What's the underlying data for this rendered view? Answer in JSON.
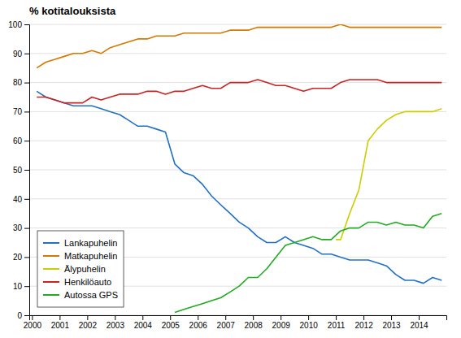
{
  "chart_data": {
    "type": "line",
    "title": "% kotitalouksista",
    "xlim": [
      1999.9,
      2015.0
    ],
    "xticks": [
      2000,
      2001,
      2002,
      2003,
      2004,
      2005,
      2006,
      2007,
      2008,
      2009,
      2010,
      2011,
      2012,
      2013,
      2014
    ],
    "ylim": [
      0,
      100
    ],
    "yticks": [
      0,
      10,
      20,
      30,
      40,
      50,
      60,
      70,
      80,
      90,
      100
    ],
    "grid": true,
    "legend": "lower left",
    "series": [
      {
        "name": "Lankapuhelin",
        "color": "#2070c8",
        "x": [
          2000.17,
          2000.5,
          2000.83,
          2001.17,
          2001.5,
          2001.83,
          2002.17,
          2002.5,
          2002.83,
          2003.17,
          2003.5,
          2003.83,
          2004.17,
          2004.5,
          2004.83,
          2005.17,
          2005.5,
          2005.83,
          2006.17,
          2006.5,
          2006.83,
          2007.17,
          2007.5,
          2007.83,
          2008.17,
          2008.5,
          2008.83,
          2009.17,
          2009.5,
          2009.83,
          2010.17,
          2010.5,
          2010.83,
          2011.17,
          2011.5,
          2011.83,
          2012.17,
          2012.5,
          2012.83,
          2013.17,
          2013.5,
          2013.83,
          2014.17,
          2014.5,
          2014.83
        ],
        "values": [
          77,
          75,
          74,
          73,
          72,
          72,
          72,
          71,
          70,
          69,
          67,
          65,
          65,
          64,
          63,
          52,
          49,
          48,
          45,
          41,
          38,
          35,
          32,
          30,
          27,
          25,
          25,
          27,
          25,
          24,
          23,
          21,
          21,
          20,
          19,
          19,
          19,
          18,
          17,
          14,
          12,
          12,
          11,
          13,
          12
        ]
      },
      {
        "name": "Matkapuhelin",
        "color": "#d47800",
        "x": [
          2000.17,
          2000.5,
          2000.83,
          2001.17,
          2001.5,
          2001.83,
          2002.17,
          2002.5,
          2002.83,
          2003.17,
          2003.5,
          2003.83,
          2004.17,
          2004.5,
          2004.83,
          2005.17,
          2005.5,
          2005.83,
          2006.17,
          2006.5,
          2006.83,
          2007.17,
          2007.5,
          2007.83,
          2008.17,
          2008.5,
          2008.83,
          2009.17,
          2009.5,
          2009.83,
          2010.17,
          2010.5,
          2010.83,
          2011.17,
          2011.5,
          2011.83,
          2012.17,
          2012.5,
          2012.83,
          2013.17,
          2013.5,
          2013.83,
          2014.17,
          2014.5,
          2014.83
        ],
        "values": [
          85,
          87,
          88,
          89,
          90,
          90,
          91,
          90,
          92,
          93,
          94,
          95,
          95,
          96,
          96,
          96,
          97,
          97,
          97,
          97,
          97,
          98,
          98,
          98,
          99,
          99,
          99,
          99,
          99,
          99,
          99,
          99,
          99,
          100,
          99,
          99,
          99,
          99,
          99,
          99,
          99,
          99,
          99,
          99,
          99
        ]
      },
      {
        "name": "Älypuhelin",
        "color": "#cccc00",
        "x": [
          2011.0,
          2011.17,
          2011.5,
          2011.83,
          2012.17,
          2012.5,
          2012.83,
          2013.17,
          2013.5,
          2013.83,
          2014.17,
          2014.5,
          2014.83
        ],
        "values": [
          26,
          26,
          35,
          43,
          60,
          64,
          67,
          69,
          70,
          70,
          70,
          70,
          71
        ]
      },
      {
        "name": "Henkilöauto",
        "color": "#cc2222",
        "x": [
          2000.17,
          2000.5,
          2000.83,
          2001.17,
          2001.5,
          2001.83,
          2002.17,
          2002.5,
          2002.83,
          2003.17,
          2003.5,
          2003.83,
          2004.17,
          2004.5,
          2004.83,
          2005.17,
          2005.5,
          2005.83,
          2006.17,
          2006.5,
          2006.83,
          2007.17,
          2007.5,
          2007.83,
          2008.17,
          2008.5,
          2008.83,
          2009.17,
          2009.5,
          2009.83,
          2010.17,
          2010.5,
          2010.83,
          2011.17,
          2011.5,
          2011.83,
          2012.17,
          2012.5,
          2012.83,
          2013.17,
          2013.5,
          2013.83,
          2014.17,
          2014.5,
          2014.83
        ],
        "values": [
          75,
          75,
          74,
          73,
          73,
          73,
          75,
          74,
          75,
          76,
          76,
          76,
          77,
          77,
          76,
          77,
          77,
          78,
          79,
          78,
          78,
          80,
          80,
          80,
          81,
          80,
          79,
          79,
          78,
          77,
          78,
          78,
          78,
          80,
          81,
          81,
          81,
          81,
          80,
          80,
          80,
          80,
          80,
          80,
          80
        ]
      },
      {
        "name": "Autossa GPS",
        "color": "#22aa22",
        "x": [
          2005.17,
          2005.5,
          2005.83,
          2006.17,
          2006.5,
          2006.83,
          2007.17,
          2007.5,
          2007.83,
          2008.17,
          2008.5,
          2008.83,
          2009.17,
          2009.5,
          2009.83,
          2010.17,
          2010.5,
          2010.83,
          2011.17,
          2011.5,
          2011.83,
          2012.17,
          2012.5,
          2012.83,
          2013.17,
          2013.5,
          2013.83,
          2014.17,
          2014.5,
          2014.83
        ],
        "values": [
          1,
          2,
          3,
          4,
          5,
          6,
          8,
          10,
          13,
          13,
          16,
          20,
          24,
          25,
          26,
          27,
          26,
          26,
          29,
          30,
          30,
          32,
          32,
          31,
          32,
          31,
          31,
          30,
          34,
          35
        ]
      }
    ]
  }
}
